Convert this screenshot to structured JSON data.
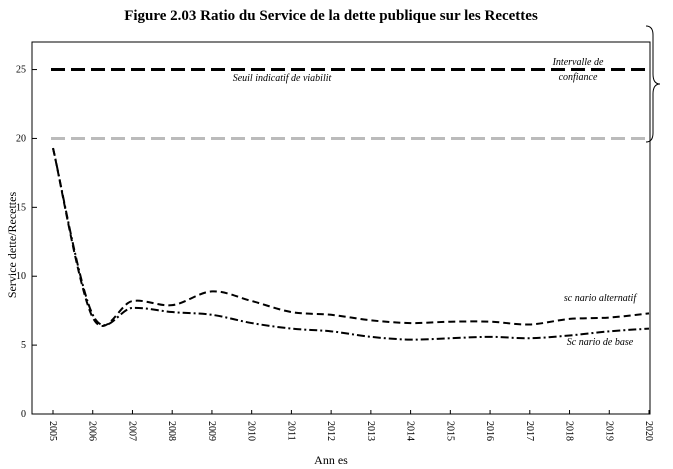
{
  "chart_data": {
    "type": "line",
    "title": "Figure 2.03 Ratio du Service de la dette publique sur les Recettes",
    "xlabel": "Ann es",
    "ylabel": "Service dette/Recettes",
    "categories": [
      "2005",
      "2006",
      "2007",
      "2008",
      "2009",
      "2010",
      "2011",
      "2012",
      "2013",
      "2014",
      "2015",
      "2016",
      "2017",
      "2018",
      "2019",
      "2020"
    ],
    "ylim": [
      0,
      27
    ],
    "yticks": [
      0,
      5,
      10,
      15,
      20,
      25
    ],
    "grid": false,
    "series": [
      {
        "name": "Seuil indicatif de viabilit",
        "style": "dashed",
        "color": "#000000",
        "values": [
          25,
          25,
          25,
          25,
          25,
          25,
          25,
          25,
          25,
          25,
          25,
          25,
          25,
          25,
          25,
          25
        ]
      },
      {
        "name": "Intervalle de confiance",
        "style": "dashed",
        "color": "#bbbbbb",
        "values": [
          20,
          20,
          20,
          20,
          20,
          20,
          20,
          20,
          20,
          20,
          20,
          20,
          20,
          20,
          20,
          20
        ]
      },
      {
        "name": "sc nario alternatif",
        "style": "dashed",
        "color": "#000000",
        "values": [
          19.3,
          7.0,
          8.2,
          7.9,
          8.9,
          8.2,
          7.4,
          7.2,
          6.8,
          6.6,
          6.7,
          6.7,
          6.5,
          6.9,
          7.0,
          7.3
        ]
      },
      {
        "name": "Sc nario de base",
        "style": "dashdot",
        "color": "#000000",
        "values": [
          19.3,
          7.2,
          7.7,
          7.4,
          7.2,
          6.6,
          6.2,
          6.0,
          5.6,
          5.4,
          5.5,
          5.6,
          5.5,
          5.7,
          6.0,
          6.2
        ]
      }
    ],
    "annotations": {
      "threshold_label": "Seuil indicatif de viabilit",
      "interval_label_1": "Intervalle de",
      "interval_label_2": "confiance",
      "alt_label": "sc nario alternatif",
      "base_label": "Sc nario de base"
    }
  }
}
